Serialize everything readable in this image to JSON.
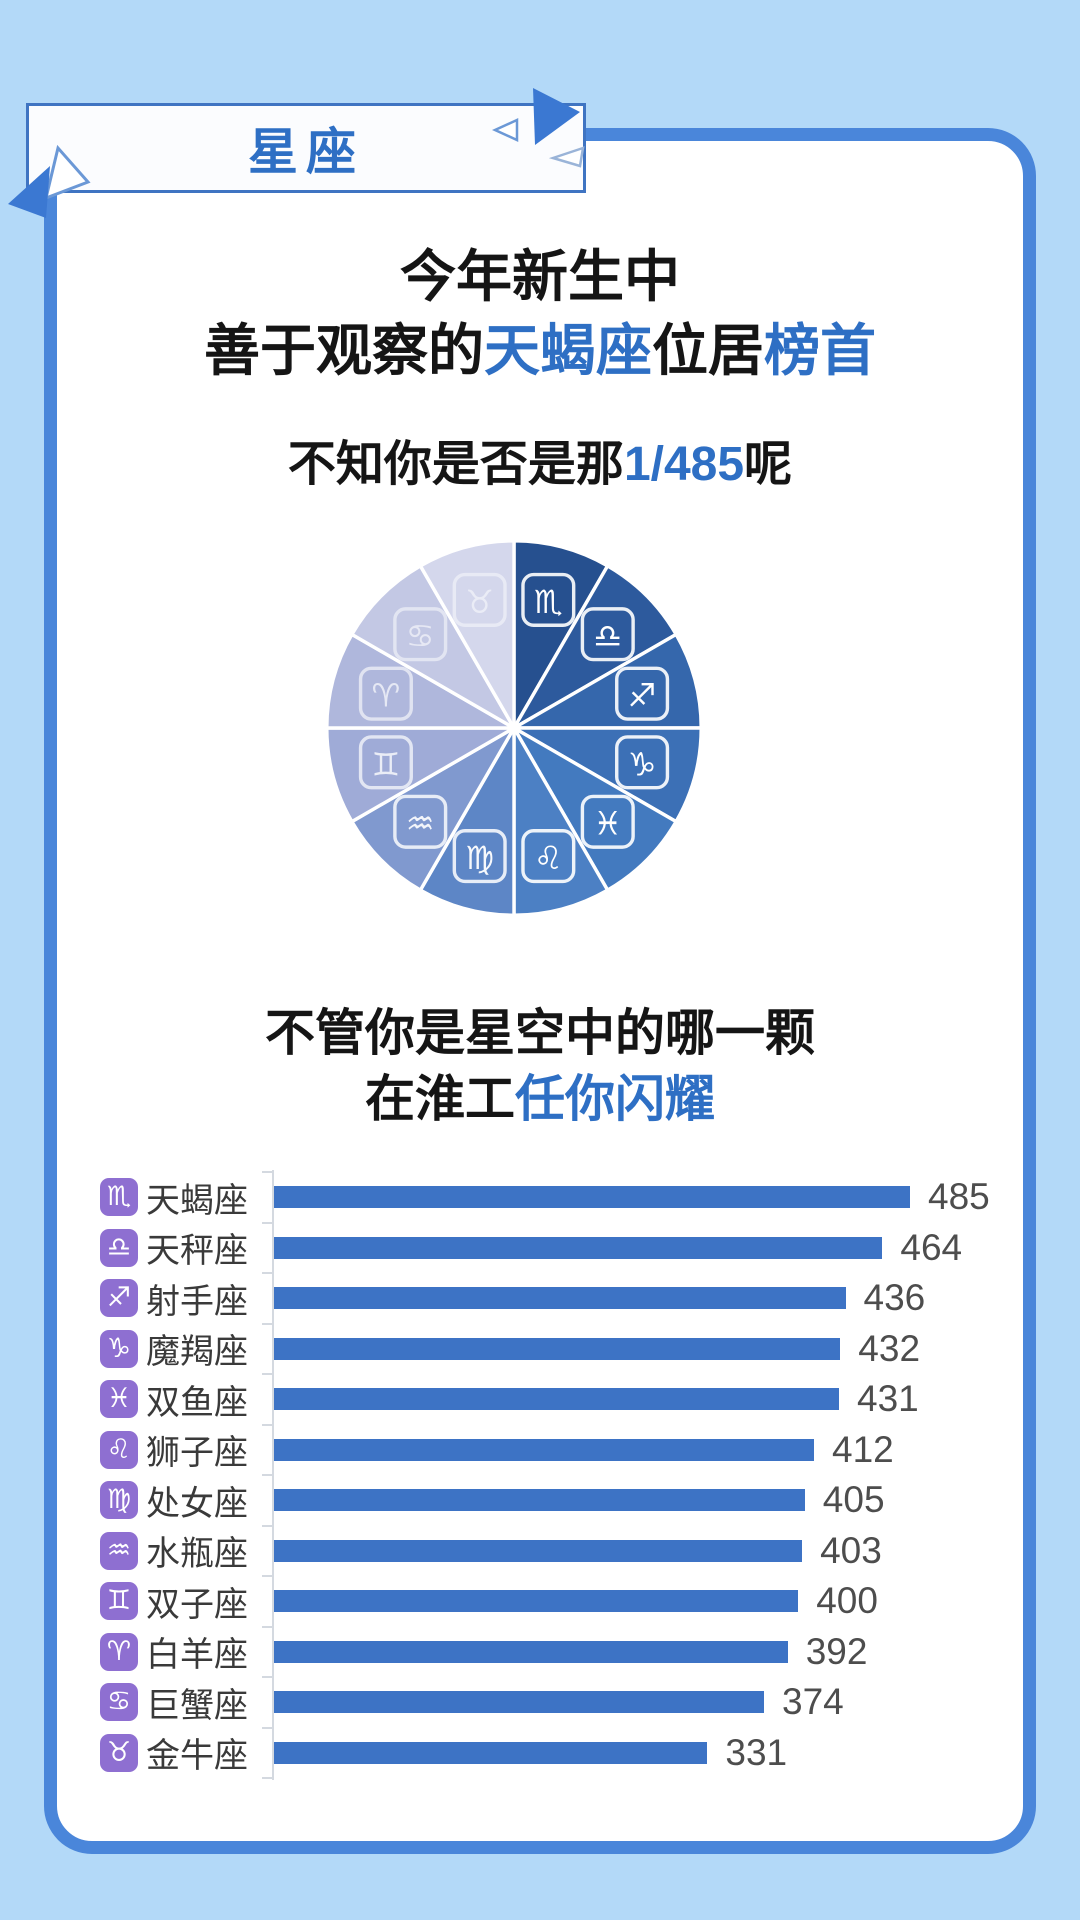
{
  "palette": {
    "background": "#b3d9f8",
    "card_border": "#4a86da",
    "accent_blue": "#2e6fc4",
    "bar_color": "#3d73c5",
    "zodiac_icon_purple": "#8e6fd1",
    "value_text": "#4d4d4d"
  },
  "header": {
    "badge_label": "星座"
  },
  "headline": {
    "line1": "今年新生中",
    "line2_prefix": "善于观察的",
    "line2_highlight1": "天蝎座",
    "line2_middle": "位居",
    "line2_highlight2": "榜首",
    "line3_prefix": "不知你是否是那",
    "line3_highlight": "1/485",
    "line3_suffix": "呢"
  },
  "slogan": {
    "line1": "不管你是星空中的哪一颗",
    "line2_prefix": "在淮工",
    "line2_highlight": "任你闪耀"
  },
  "chart_data": [
    {
      "type": "pie",
      "title": "",
      "equal_slices": true,
      "order": "clockwise-from-top, ranked by count, shaded dark to light",
      "labels": [
        "天蝎座",
        "天秤座",
        "射手座",
        "魔羯座",
        "双鱼座",
        "狮子座",
        "处女座",
        "水瓶座",
        "双子座",
        "白羊座",
        "巨蟹座",
        "金牛座"
      ],
      "symbols": [
        "♏",
        "♎",
        "♐",
        "♑",
        "♓",
        "♌",
        "♍",
        "♒",
        "♊",
        "♈",
        "♋",
        "♉"
      ],
      "values": [
        485,
        464,
        436,
        432,
        431,
        412,
        405,
        403,
        400,
        392,
        374,
        331
      ],
      "colors": [
        "#26508f",
        "#2d5a9d",
        "#3567ac",
        "#3c70b6",
        "#437abf",
        "#4c80c4",
        "#5d86c6",
        "#8099cf",
        "#9fabd7",
        "#afb7dc",
        "#c3c8e4",
        "#d4d7ec"
      ],
      "icon_opacities": [
        1,
        1,
        1,
        1,
        1,
        1,
        0.95,
        0.9,
        0.78,
        0.68,
        0.58,
        0.52
      ],
      "legend_position": "none",
      "grid": false
    },
    {
      "type": "bar",
      "orientation": "horizontal",
      "title": "",
      "categories": [
        "天蝎座",
        "天秤座",
        "射手座",
        "魔羯座",
        "双鱼座",
        "狮子座",
        "处女座",
        "水瓶座",
        "双子座",
        "白羊座",
        "巨蟹座",
        "金牛座"
      ],
      "symbols": [
        "♏",
        "♎",
        "♐",
        "♑",
        "♓",
        "♌",
        "♍",
        "♒",
        "♊",
        "♈",
        "♋",
        "♉"
      ],
      "values": [
        485,
        464,
        436,
        432,
        431,
        412,
        405,
        403,
        400,
        392,
        374,
        331
      ],
      "xlim": [
        0,
        485
      ],
      "grid": false,
      "value_labels": true
    }
  ]
}
